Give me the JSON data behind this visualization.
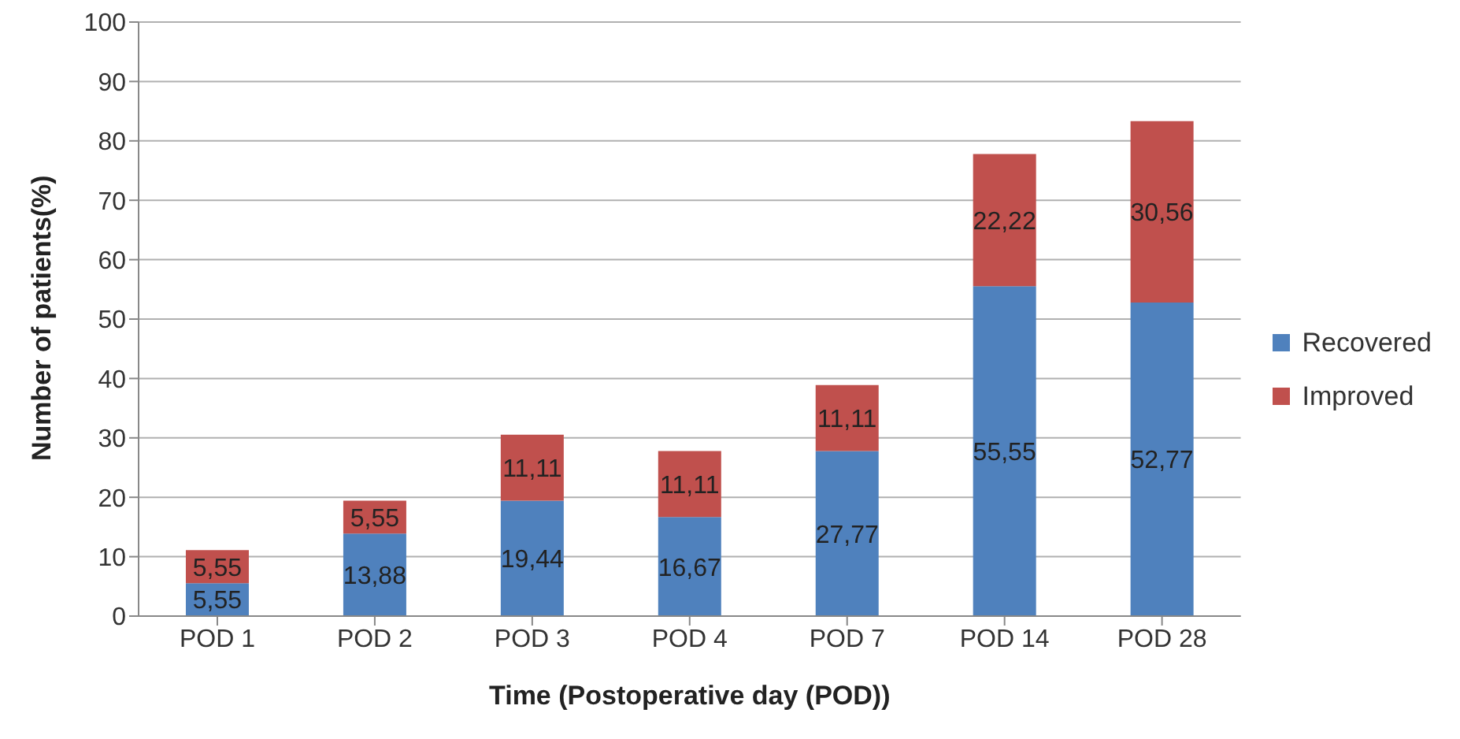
{
  "chart_data": {
    "type": "bar",
    "stacked": true,
    "xlabel": "Time (Postoperative day (POD))",
    "ylabel": "Number of patients(%)",
    "categories": [
      "POD 1",
      "POD 2",
      "POD 3",
      "POD 4",
      "POD 7",
      "POD 14",
      "POD 28"
    ],
    "series": [
      {
        "name": "Recovered",
        "color": "#4f81bd",
        "values": [
          5.55,
          13.88,
          19.44,
          16.67,
          27.77,
          55.55,
          52.77
        ],
        "value_labels": [
          "5,55",
          "13,88",
          "19,44",
          "16,67",
          "27,77",
          "55,55",
          "52,77"
        ]
      },
      {
        "name": "Improved",
        "color": "#c0504d",
        "values": [
          5.55,
          5.55,
          11.11,
          11.11,
          11.11,
          22.22,
          30.56
        ],
        "value_labels": [
          "5,55",
          "5,55",
          "11,11",
          "11,11",
          "11,11",
          "22,22",
          "30,56"
        ]
      }
    ],
    "ylim": [
      0,
      100
    ],
    "yticks": [
      0,
      10,
      20,
      30,
      40,
      50,
      60,
      70,
      80,
      90,
      100
    ],
    "grid": "y",
    "legend": "right"
  }
}
